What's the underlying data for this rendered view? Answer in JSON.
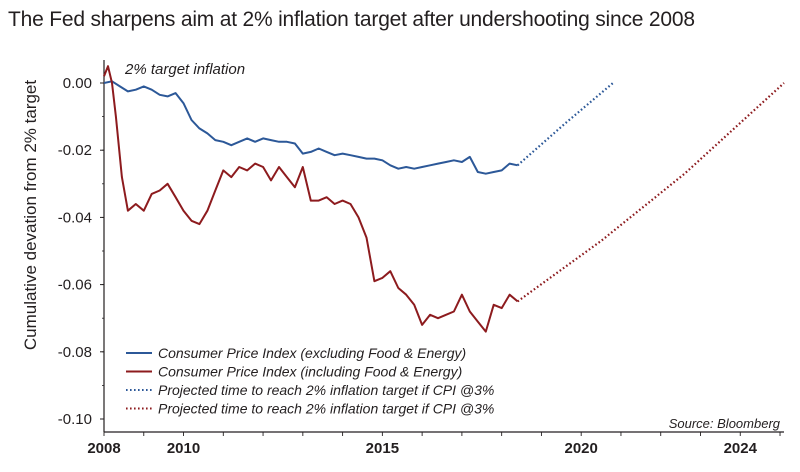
{
  "chart_data": {
    "type": "line",
    "title": "The Fed sharpens aim at 2% inflation target after undershooting since 2008",
    "ylabel": "Cumulative devation from 2% target",
    "xlabel": "",
    "annotation": "2% target inflation",
    "source": "Source: Bloomberg",
    "xlim": [
      2008,
      2025.1
    ],
    "ylim": [
      -0.1,
      0.005
    ],
    "x_ticks": [
      "2008",
      "2010",
      "2015",
      "2020",
      "2024"
    ],
    "y_ticks": [
      "0.00",
      "-0.02",
      "-0.04",
      "-0.06",
      "-0.08",
      "-0.10"
    ],
    "grid": false,
    "legend_position": "bottom-left",
    "series": [
      {
        "name": "Consumer Price Index (excluding Food & Energy)",
        "style": "solid",
        "color": "#2c5898",
        "x": [
          2008.0,
          2008.2,
          2008.4,
          2008.6,
          2008.8,
          2009.0,
          2009.2,
          2009.4,
          2009.6,
          2009.8,
          2010.0,
          2010.2,
          2010.4,
          2010.6,
          2010.8,
          2011.0,
          2011.2,
          2011.4,
          2011.6,
          2011.8,
          2012.0,
          2012.2,
          2012.4,
          2012.6,
          2012.8,
          2013.0,
          2013.2,
          2013.4,
          2013.6,
          2013.8,
          2014.0,
          2014.2,
          2014.4,
          2014.6,
          2014.8,
          2015.0,
          2015.2,
          2015.4,
          2015.6,
          2015.8,
          2016.0,
          2016.2,
          2016.4,
          2016.6,
          2016.8,
          2017.0,
          2017.2,
          2017.4,
          2017.6,
          2017.8,
          2018.0,
          2018.2,
          2018.4
        ],
        "values": [
          0.0,
          0.0005,
          -0.001,
          -0.0025,
          -0.002,
          -0.001,
          -0.002,
          -0.0035,
          -0.004,
          -0.003,
          -0.006,
          -0.011,
          -0.0135,
          -0.015,
          -0.017,
          -0.0175,
          -0.0185,
          -0.0175,
          -0.0165,
          -0.0175,
          -0.0165,
          -0.017,
          -0.0175,
          -0.0175,
          -0.018,
          -0.021,
          -0.0205,
          -0.0195,
          -0.0205,
          -0.0215,
          -0.021,
          -0.0215,
          -0.022,
          -0.0225,
          -0.0225,
          -0.023,
          -0.0245,
          -0.0255,
          -0.025,
          -0.0255,
          -0.025,
          -0.0245,
          -0.024,
          -0.0235,
          -0.023,
          -0.0235,
          -0.022,
          -0.0265,
          -0.027,
          -0.0265,
          -0.026,
          -0.024,
          -0.0245
        ]
      },
      {
        "name": "Consumer Price Index (including Food & Energy)",
        "style": "solid",
        "color": "#8d1b1e",
        "x": [
          2008.0,
          2008.1,
          2008.2,
          2008.3,
          2008.45,
          2008.6,
          2008.8,
          2009.0,
          2009.2,
          2009.4,
          2009.6,
          2009.8,
          2010.0,
          2010.2,
          2010.4,
          2010.6,
          2010.8,
          2011.0,
          2011.2,
          2011.4,
          2011.6,
          2011.8,
          2012.0,
          2012.2,
          2012.4,
          2012.6,
          2012.8,
          2013.0,
          2013.2,
          2013.4,
          2013.6,
          2013.8,
          2014.0,
          2014.2,
          2014.4,
          2014.6,
          2014.8,
          2015.0,
          2015.2,
          2015.4,
          2015.6,
          2015.8,
          2016.0,
          2016.2,
          2016.4,
          2016.6,
          2016.8,
          2017.0,
          2017.2,
          2017.4,
          2017.6,
          2017.8,
          2018.0,
          2018.2,
          2018.4
        ],
        "values": [
          0.002,
          0.005,
          0.0,
          -0.01,
          -0.028,
          -0.038,
          -0.036,
          -0.038,
          -0.033,
          -0.032,
          -0.03,
          -0.034,
          -0.038,
          -0.041,
          -0.042,
          -0.038,
          -0.032,
          -0.026,
          -0.028,
          -0.025,
          -0.026,
          -0.024,
          -0.025,
          -0.029,
          -0.025,
          -0.028,
          -0.031,
          -0.025,
          -0.035,
          -0.035,
          -0.034,
          -0.036,
          -0.035,
          -0.036,
          -0.04,
          -0.046,
          -0.059,
          -0.058,
          -0.056,
          -0.061,
          -0.063,
          -0.066,
          -0.072,
          -0.069,
          -0.07,
          -0.069,
          -0.068,
          -0.063,
          -0.068,
          -0.071,
          -0.074,
          -0.066,
          -0.067,
          -0.063,
          -0.065
        ]
      },
      {
        "name": "Projected time to reach 2% inflation target if CPI @3%",
        "style": "dotted",
        "color": "#2c5898",
        "x": [
          2018.4,
          2019.6,
          2020.8
        ],
        "values": [
          -0.0245,
          -0.012,
          0.0
        ]
      },
      {
        "name": "Projected time to reach 2% inflation target if CPI @3%",
        "style": "dotted",
        "color": "#8d1b1e",
        "x": [
          2018.4,
          2020.5,
          2022.6,
          2025.1
        ],
        "values": [
          -0.065,
          -0.047,
          -0.027,
          0.0
        ]
      }
    ]
  }
}
